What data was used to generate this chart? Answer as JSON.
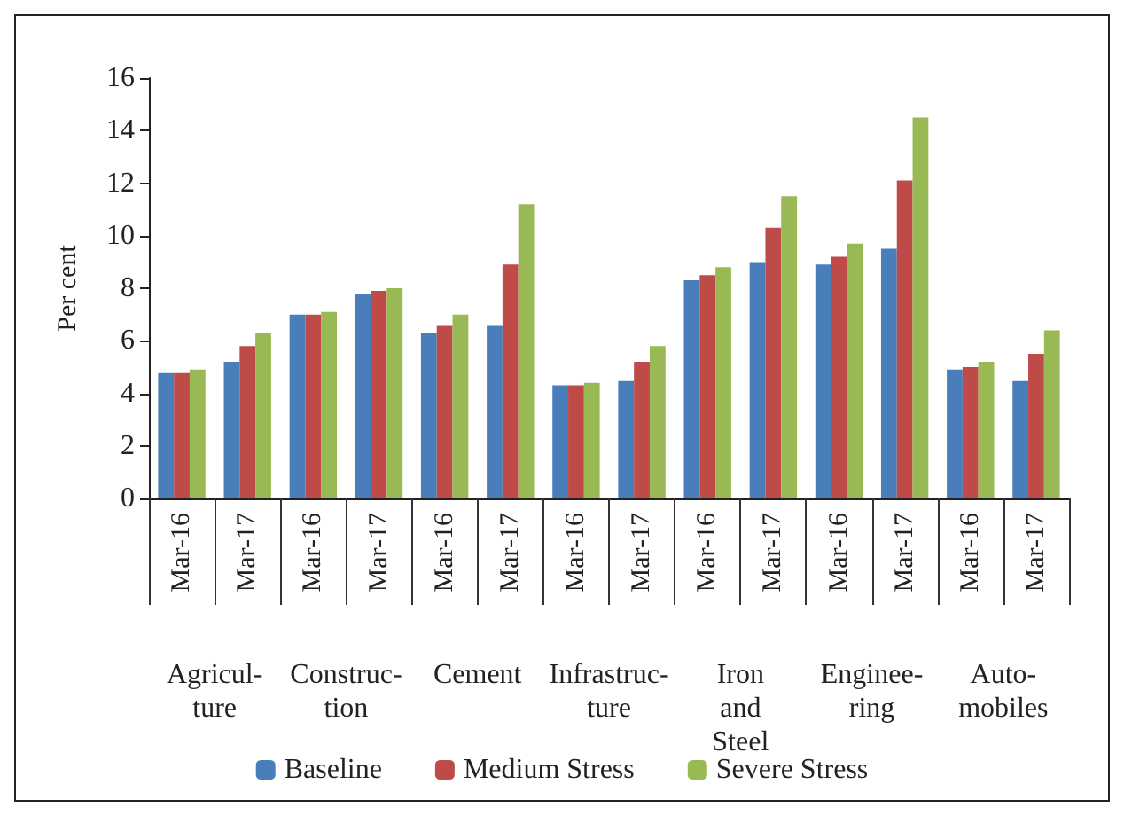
{
  "chart_data": {
    "type": "bar",
    "ylabel": "Per cent",
    "categories": [
      "Mar-16",
      "Mar-17",
      "Mar-16",
      "Mar-17",
      "Mar-16",
      "Mar-17",
      "Mar-16",
      "Mar-17",
      "Mar-16",
      "Mar-17",
      "Mar-16",
      "Mar-17",
      "Mar-16",
      "Mar-17"
    ],
    "annotations": [
      "Agricul-\nture",
      "Construc-\ntion",
      "Cement",
      "Infrastruc-\nture",
      "Iron\nand\nSteel",
      "Enginee-\nring",
      "Auto-\nmobiles"
    ],
    "series": [
      {
        "name": "Baseline",
        "color": "#4a7ebb",
        "values": [
          4.8,
          5.2,
          7.0,
          7.8,
          6.3,
          6.6,
          4.3,
          4.5,
          8.3,
          9.0,
          8.9,
          9.5,
          4.9,
          4.5
        ]
      },
      {
        "name": "Medium Stress",
        "color": "#be4b48",
        "values": [
          4.8,
          5.8,
          7.0,
          7.9,
          6.6,
          8.9,
          4.3,
          5.2,
          8.5,
          10.3,
          9.2,
          12.1,
          5.0,
          5.5
        ]
      },
      {
        "name": "Severe Stress",
        "color": "#98b954",
        "values": [
          4.9,
          6.3,
          7.1,
          8.0,
          7.0,
          11.2,
          4.4,
          5.8,
          8.8,
          11.5,
          9.7,
          14.5,
          5.2,
          6.4
        ]
      }
    ],
    "ylim": [
      0,
      16
    ],
    "yticks": [
      0,
      2,
      4,
      6,
      8,
      10,
      12,
      14,
      16
    ],
    "grid": false,
    "legend": "bottom"
  }
}
